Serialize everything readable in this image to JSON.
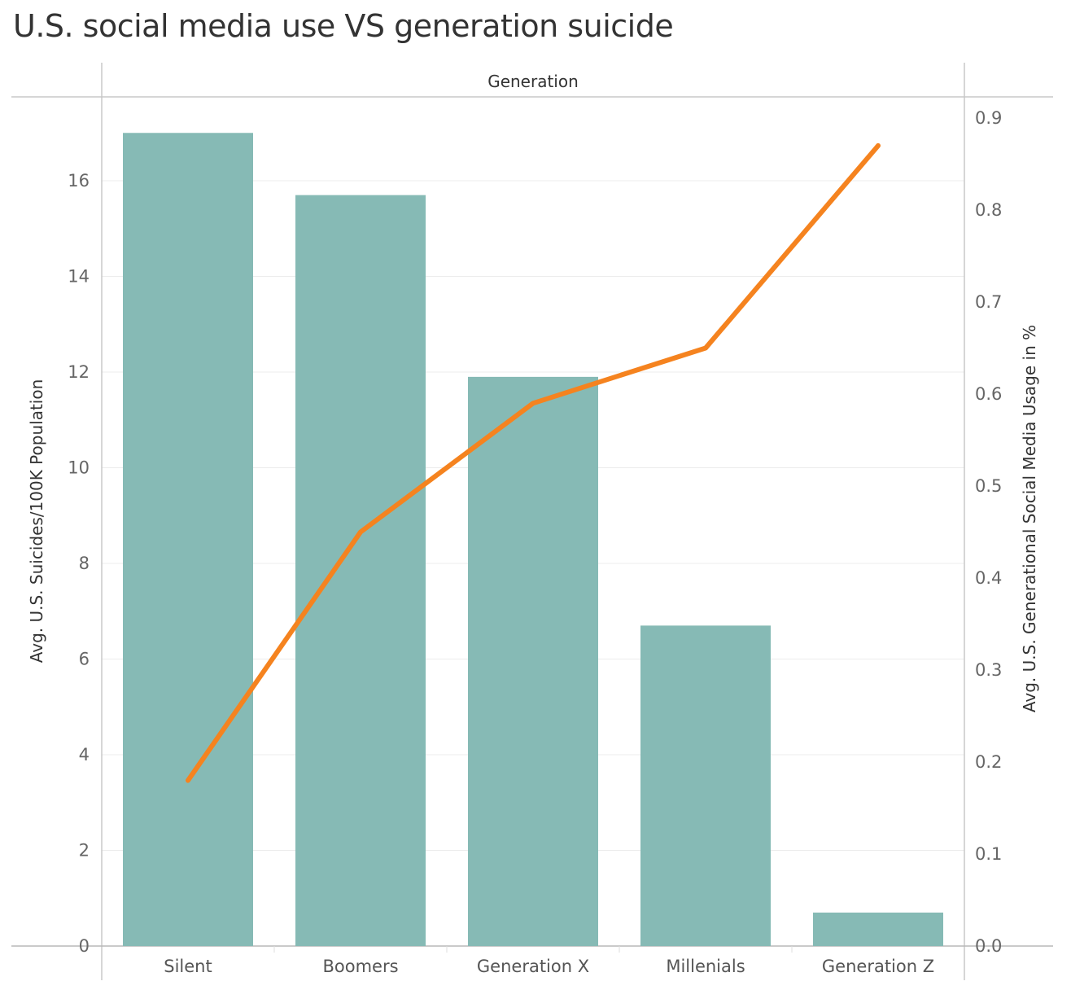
{
  "title": "U.S. social media use VS generation suicide",
  "chart_data": {
    "type": "bar",
    "title": "U.S. social media use VS generation suicide",
    "column_header": "Generation",
    "categories": [
      "Silent",
      "Boomers",
      "Generation X",
      "Millenials",
      "Generation Z"
    ],
    "series": [
      {
        "name": "Avg. U.S. Suicides/100K Population",
        "type": "bar",
        "axis": "left",
        "color": "#86bab5",
        "values": [
          17.0,
          15.7,
          11.9,
          6.7,
          0.7
        ]
      },
      {
        "name": "Avg. U.S. Generational Social Media Usage in %",
        "type": "line",
        "axis": "right",
        "color": "#f5831f",
        "values": [
          0.18,
          0.45,
          0.59,
          0.65,
          0.87
        ]
      }
    ],
    "ylabel_left": "Avg. U.S. Suicides/100K Population",
    "ylabel_right": "Avg. U.S. Generational Social Media Usage in %",
    "ylim_left": [
      0,
      17.5
    ],
    "ylim_right": [
      0,
      0.906
    ],
    "yticks_left": [
      "0",
      "2",
      "4",
      "6",
      "8",
      "10",
      "12",
      "14",
      "16"
    ],
    "yticks_right": [
      "0.0",
      "0.1",
      "0.2",
      "0.3",
      "0.4",
      "0.5",
      "0.6",
      "0.7",
      "0.8",
      "0.9"
    ],
    "grid": true,
    "legend": "none"
  }
}
